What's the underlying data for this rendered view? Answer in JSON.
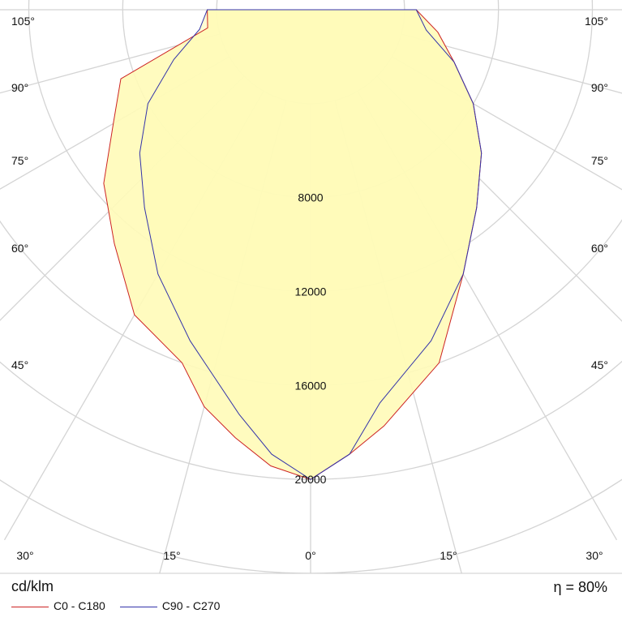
{
  "chart_data": {
    "type": "polar",
    "unit": "cd/klm",
    "efficiency_label": "η = 80%",
    "rmax": 24000,
    "ring_values": [
      4000,
      8000,
      12000,
      16000,
      20000,
      24000
    ],
    "ring_labels": [
      "8000",
      "12000",
      "16000",
      "20000"
    ],
    "angle_ticks": {
      "bottom": [
        "30°",
        "15°",
        "0°",
        "15°",
        "30°"
      ],
      "left": [
        "45°",
        "60°",
        "75°",
        "90°",
        "105°"
      ],
      "right": [
        "45°",
        "60°",
        "75°",
        "90°",
        "105°"
      ]
    },
    "series": [
      {
        "name": "C0 - C180",
        "color": "#cc2222",
        "points": [
          [
            -180,
            0
          ],
          [
            -90,
            4400
          ],
          [
            -80,
            4450
          ],
          [
            -70,
            8600
          ],
          [
            -60,
            9700
          ],
          [
            -50,
            11500
          ],
          [
            -40,
            13000
          ],
          [
            -30,
            15000
          ],
          [
            -20,
            16000
          ],
          [
            -15,
            17500
          ],
          [
            -10,
            18500
          ],
          [
            -5,
            19500
          ],
          [
            0,
            20000
          ],
          [
            5,
            19000
          ],
          [
            10,
            18000
          ],
          [
            20,
            16000
          ],
          [
            30,
            13000
          ],
          [
            40,
            11000
          ],
          [
            50,
            9500
          ],
          [
            60,
            8000
          ],
          [
            70,
            6500
          ],
          [
            80,
            5500
          ],
          [
            90,
            4500
          ],
          [
            180,
            0
          ]
        ]
      },
      {
        "name": "C90 - C270",
        "color": "#3333aa",
        "points": [
          [
            -180,
            0
          ],
          [
            -90,
            4400
          ],
          [
            -80,
            4800
          ],
          [
            -70,
            6200
          ],
          [
            -60,
            8000
          ],
          [
            -50,
            9500
          ],
          [
            -40,
            11000
          ],
          [
            -30,
            13000
          ],
          [
            -20,
            15000
          ],
          [
            -10,
            17500
          ],
          [
            -5,
            19000
          ],
          [
            0,
            20000
          ],
          [
            5,
            19000
          ],
          [
            10,
            17000
          ],
          [
            20,
            15000
          ],
          [
            30,
            13000
          ],
          [
            40,
            11000
          ],
          [
            50,
            9500
          ],
          [
            60,
            8000
          ],
          [
            70,
            6500
          ],
          [
            80,
            5000
          ],
          [
            90,
            4500
          ],
          [
            180,
            0
          ]
        ]
      }
    ]
  }
}
